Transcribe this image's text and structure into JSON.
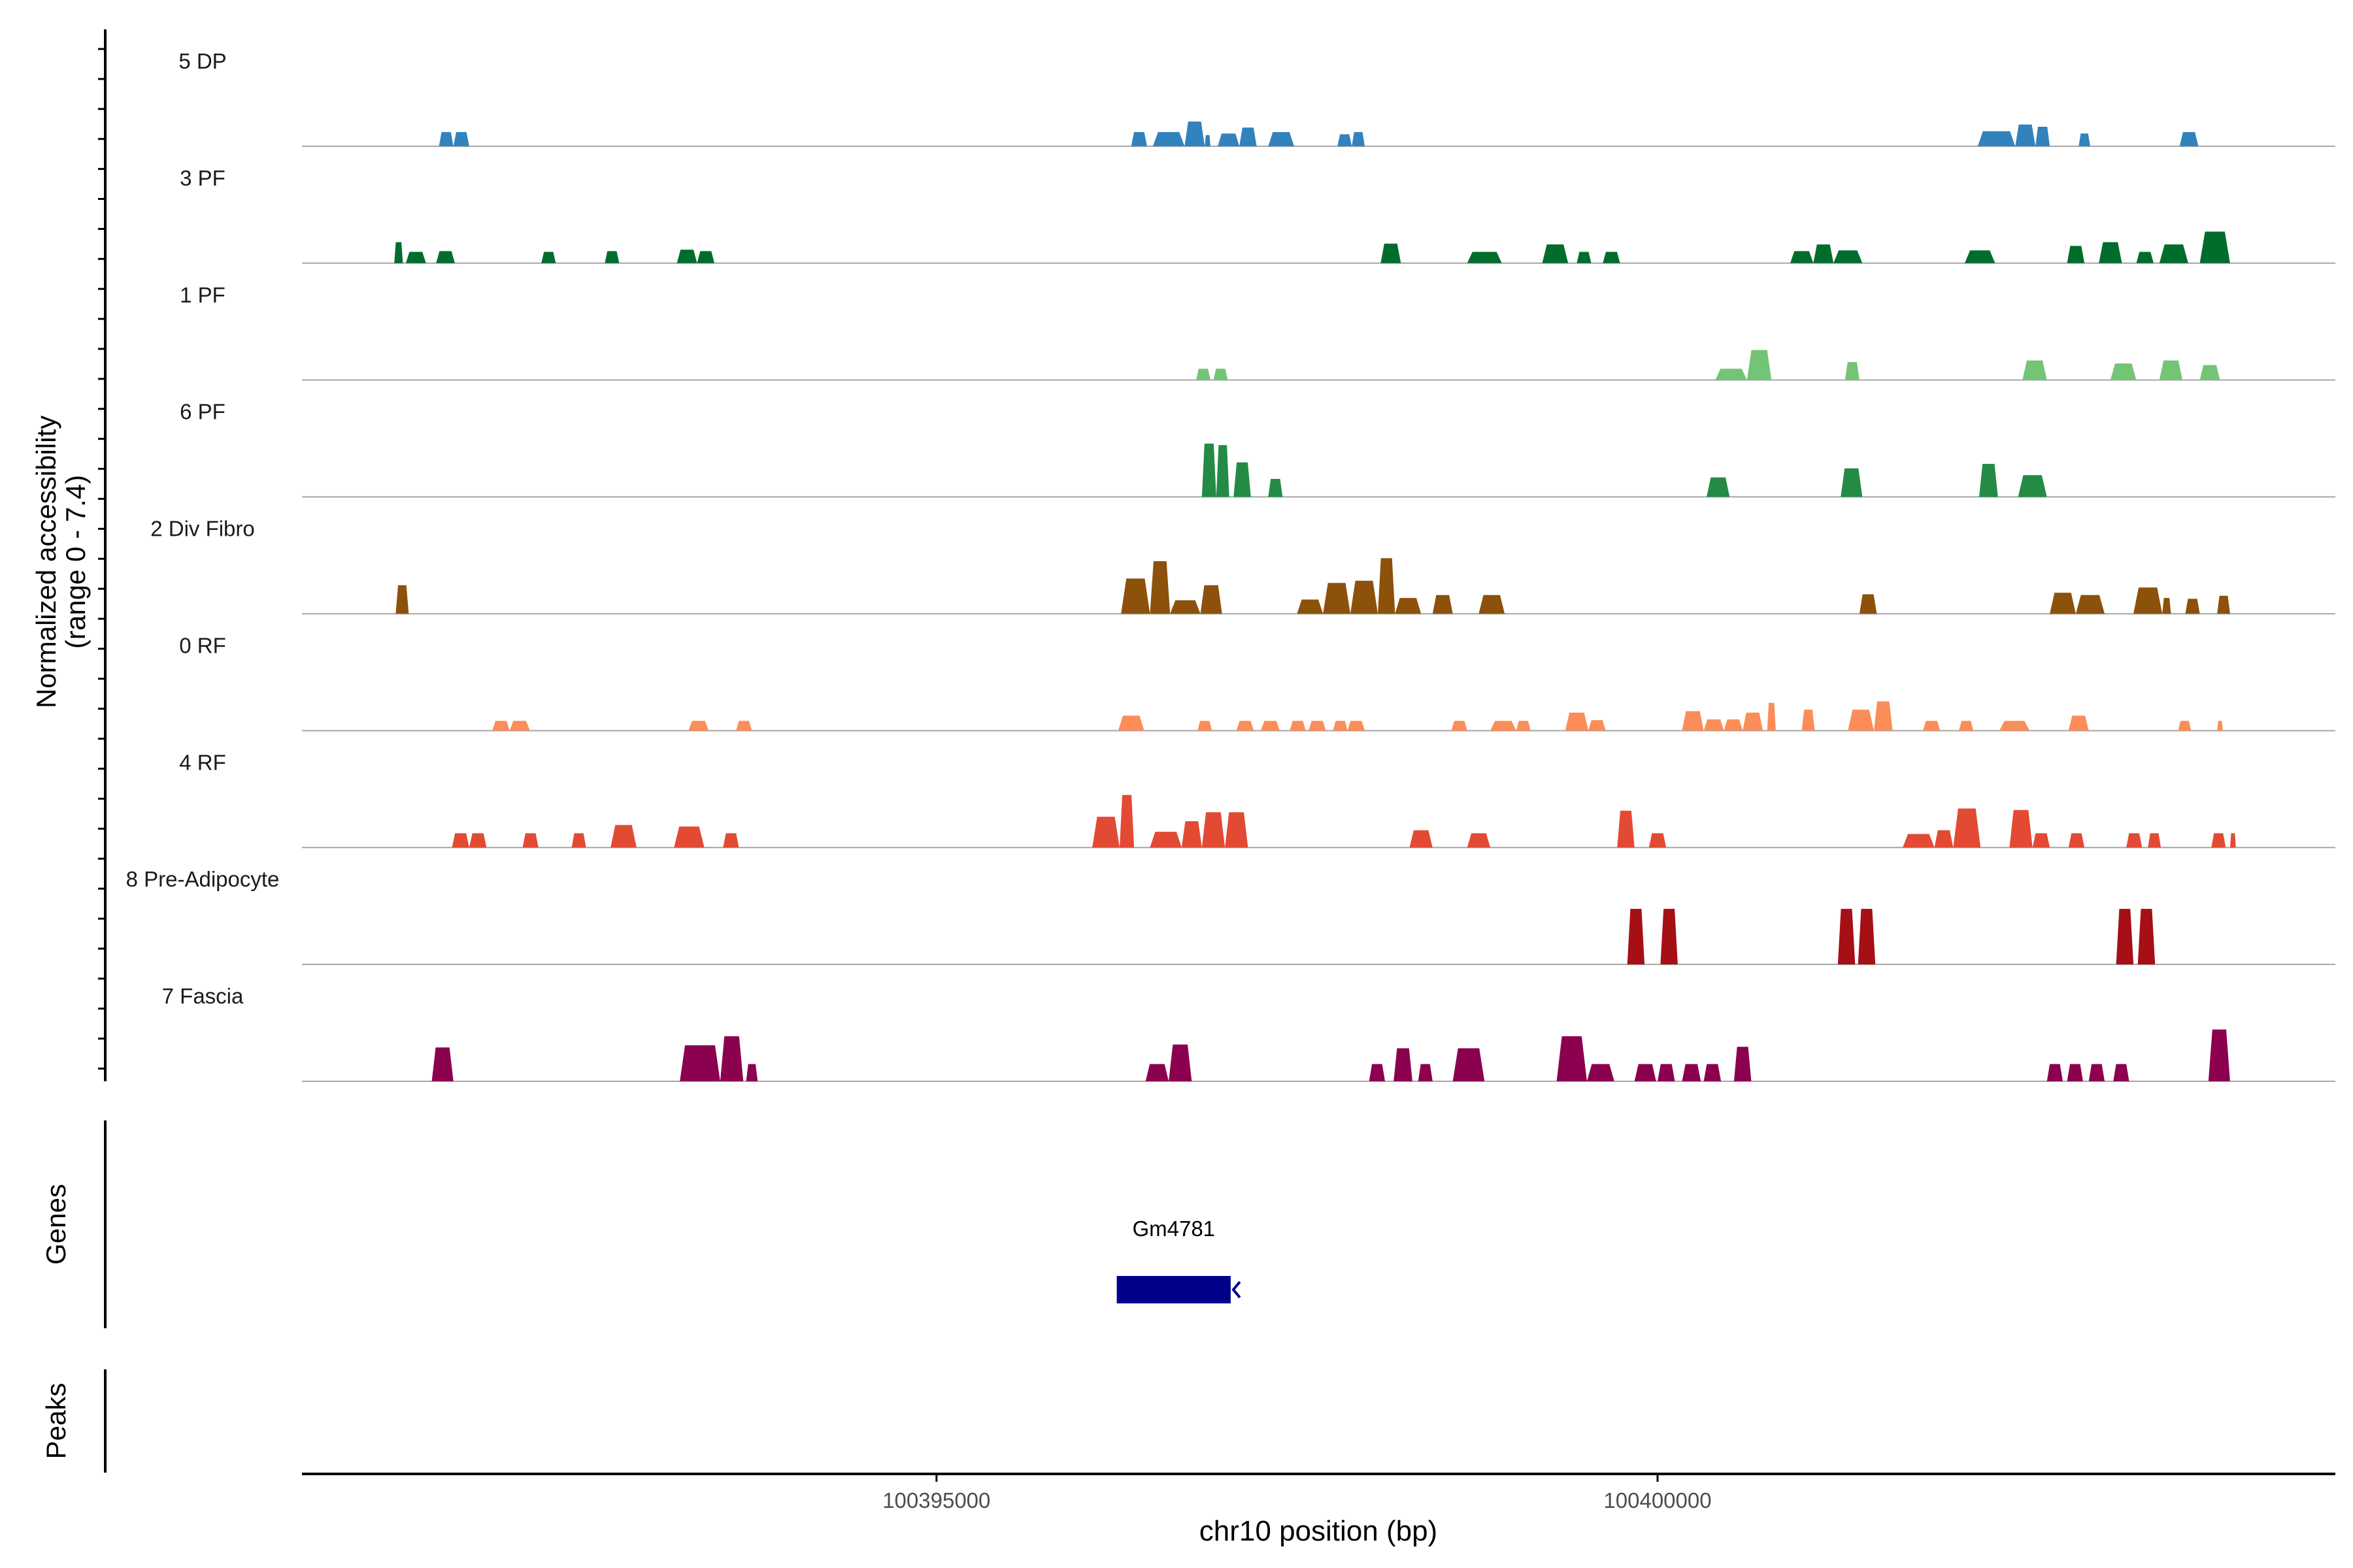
{
  "chart_data": {
    "type": "area",
    "title": "",
    "chromosome": "chr10",
    "xlabel": "chr10 position (bp)",
    "xlim": [
      100390600,
      100404700
    ],
    "x_ticks": [
      100395000,
      100400000
    ],
    "x_tick_labels": [
      "100395000",
      "100400000"
    ],
    "ylabel_line1": "Normalized accessibility",
    "ylabel_line2": "(range 0 - 7.4)",
    "ylim": [
      0,
      7.4
    ],
    "genes_panel_label": "Genes",
    "peaks_panel_label": "Peaks",
    "genes": [
      {
        "name": "Gm4781",
        "start": 100396250,
        "end": 100397040,
        "strand": "-",
        "color": "#00008b"
      }
    ],
    "series": [
      {
        "name": "5 DP",
        "color": "#3182bd",
        "peaks": [
          [
            100391550,
            100391650,
            1.9
          ],
          [
            100391650,
            100391760,
            1.9
          ],
          [
            100396350,
            100396460,
            1.9
          ],
          [
            100396500,
            100396720,
            1.9
          ],
          [
            100396720,
            100396860,
            3.3
          ],
          [
            100396860,
            100396900,
            1.5
          ],
          [
            100396950,
            100397100,
            1.7
          ],
          [
            100397100,
            100397220,
            2.5
          ],
          [
            100397300,
            100397480,
            1.9
          ],
          [
            100397780,
            100397880,
            1.6
          ],
          [
            100397880,
            100397970,
            1.9
          ],
          [
            100402220,
            100402480,
            2.0
          ],
          [
            100402480,
            100402620,
            2.9
          ],
          [
            100402620,
            100402720,
            2.6
          ],
          [
            100402920,
            100403000,
            1.7
          ],
          [
            100403620,
            100403750,
            1.9
          ]
        ]
      },
      {
        "name": "3 PF",
        "color": "#006d2c",
        "peaks": [
          [
            100391240,
            100391300,
            2.8
          ],
          [
            100391320,
            100391460,
            1.5
          ],
          [
            100391530,
            100391660,
            1.6
          ],
          [
            100392260,
            100392360,
            1.5
          ],
          [
            100392700,
            100392800,
            1.6
          ],
          [
            100393200,
            100393340,
            1.8
          ],
          [
            100393340,
            100393460,
            1.6
          ],
          [
            100398080,
            100398220,
            2.6
          ],
          [
            100398680,
            100398920,
            1.5
          ],
          [
            100399200,
            100399380,
            2.5
          ],
          [
            100399440,
            100399540,
            1.5
          ],
          [
            100399620,
            100399740,
            1.5
          ],
          [
            100400920,
            100401080,
            1.6
          ],
          [
            100401080,
            100401220,
            2.5
          ],
          [
            100401220,
            100401420,
            1.7
          ],
          [
            100402130,
            100402340,
            1.7
          ],
          [
            100402840,
            100402960,
            2.3
          ],
          [
            100403060,
            100403220,
            2.8
          ],
          [
            100403320,
            100403440,
            1.5
          ],
          [
            100403480,
            100403680,
            2.5
          ],
          [
            100403760,
            100403970,
            4.2
          ]
        ]
      },
      {
        "name": "1 PF",
        "color": "#74c476",
        "peaks": [
          [
            100396800,
            100396900,
            1.5
          ],
          [
            100396920,
            100397020,
            1.5
          ],
          [
            100400400,
            100400620,
            1.5
          ],
          [
            100400620,
            100400790,
            4.0
          ],
          [
            100401300,
            100401400,
            2.4
          ],
          [
            100402530,
            100402700,
            2.6
          ],
          [
            100403140,
            100403320,
            2.2
          ],
          [
            100403480,
            100403640,
            2.6
          ],
          [
            100403760,
            100403900,
            2.0
          ]
        ]
      },
      {
        "name": "6 PF",
        "color": "#238b45",
        "peaks": [
          [
            100396840,
            100396940,
            7.1
          ],
          [
            100396940,
            100397030,
            6.9
          ],
          [
            100397060,
            100397180,
            4.6
          ],
          [
            100397300,
            100397400,
            2.4
          ],
          [
            100400340,
            100400500,
            2.6
          ],
          [
            100401270,
            100401420,
            3.8
          ],
          [
            100402230,
            100402360,
            4.4
          ],
          [
            100402500,
            100402700,
            2.9
          ]
        ]
      },
      {
        "name": "2 Div Fibro",
        "color": "#8c510a",
        "peaks": [
          [
            100391250,
            100391340,
            3.8
          ],
          [
            100396280,
            100396480,
            4.7
          ],
          [
            100396480,
            100396620,
            7.0
          ],
          [
            100396620,
            100396830,
            1.8
          ],
          [
            100396830,
            100396980,
            3.8
          ],
          [
            100397500,
            100397680,
            1.9
          ],
          [
            100397680,
            100397870,
            4.1
          ],
          [
            100397870,
            100398060,
            4.4
          ],
          [
            100398060,
            100398180,
            7.4
          ],
          [
            100398180,
            100398360,
            2.1
          ],
          [
            100398440,
            100398580,
            2.5
          ],
          [
            100398760,
            100398940,
            2.5
          ],
          [
            100401400,
            100401520,
            2.6
          ],
          [
            100402720,
            100402900,
            2.8
          ],
          [
            100402900,
            100403100,
            2.5
          ],
          [
            100403300,
            100403500,
            3.5
          ],
          [
            100403500,
            100403560,
            2.1
          ],
          [
            100403660,
            100403760,
            2.0
          ],
          [
            100403880,
            100403970,
            2.4
          ]
        ]
      },
      {
        "name": "0 RF",
        "color": "#fc8d59",
        "peaks": [
          [
            100391920,
            100392040,
            1.3
          ],
          [
            100392040,
            100392180,
            1.3
          ],
          [
            100393280,
            100393420,
            1.3
          ],
          [
            100393610,
            100393720,
            1.3
          ],
          [
            100396260,
            100396440,
            2.0
          ],
          [
            100396810,
            100396910,
            1.3
          ],
          [
            100397080,
            100397200,
            1.3
          ],
          [
            100397250,
            100397380,
            1.3
          ],
          [
            100397450,
            100397560,
            1.3
          ],
          [
            100397580,
            100397700,
            1.3
          ],
          [
            100397750,
            100397850,
            1.3
          ],
          [
            100397850,
            100397970,
            1.3
          ],
          [
            100398570,
            100398680,
            1.3
          ],
          [
            100398840,
            100399020,
            1.3
          ],
          [
            100399020,
            100399120,
            1.3
          ],
          [
            100399360,
            100399520,
            2.4
          ],
          [
            100399520,
            100399640,
            1.4
          ],
          [
            100400170,
            100400320,
            2.6
          ],
          [
            100400320,
            100400460,
            1.5
          ],
          [
            100400460,
            100400590,
            1.5
          ],
          [
            100400590,
            100400730,
            2.4
          ],
          [
            100400760,
            100400820,
            3.7
          ],
          [
            100401000,
            100401090,
            2.8
          ],
          [
            100401320,
            100401500,
            2.8
          ],
          [
            100401500,
            100401630,
            3.9
          ],
          [
            100401840,
            100401960,
            1.3
          ],
          [
            100402090,
            100402190,
            1.3
          ],
          [
            100402370,
            100402580,
            1.3
          ],
          [
            100402850,
            100402990,
            2.0
          ],
          [
            100403610,
            100403700,
            1.3
          ],
          [
            100403880,
            100403920,
            1.3
          ]
        ]
      },
      {
        "name": "4 RF",
        "color": "#e34a33",
        "peaks": [
          [
            100391640,
            100391760,
            1.9
          ],
          [
            100391760,
            100391880,
            1.9
          ],
          [
            100392130,
            100392240,
            1.9
          ],
          [
            100392470,
            100392570,
            1.9
          ],
          [
            100392740,
            100392920,
            3.0
          ],
          [
            100393180,
            100393390,
            2.8
          ],
          [
            100393520,
            100393630,
            1.9
          ],
          [
            100396080,
            100396270,
            4.1
          ],
          [
            100396270,
            100396370,
            7.0
          ],
          [
            100396480,
            100396700,
            2.1
          ],
          [
            100396700,
            100396840,
            3.5
          ],
          [
            100396840,
            100397000,
            4.7
          ],
          [
            100397000,
            100397160,
            4.7
          ],
          [
            100398280,
            100398440,
            2.3
          ],
          [
            100398680,
            100398840,
            1.9
          ],
          [
            100399720,
            100399840,
            4.9
          ],
          [
            100399940,
            100400060,
            1.9
          ],
          [
            100401700,
            100401920,
            1.8
          ],
          [
            100401920,
            100402050,
            2.3
          ],
          [
            100402050,
            100402240,
            5.2
          ],
          [
            100402440,
            100402600,
            5.0
          ],
          [
            100402600,
            100402720,
            1.9
          ],
          [
            100402850,
            100402960,
            1.9
          ],
          [
            100403250,
            100403360,
            1.9
          ],
          [
            100403400,
            100403490,
            1.9
          ],
          [
            100403840,
            100403940,
            1.9
          ],
          [
            100403970,
            100404010,
            1.9
          ]
        ]
      },
      {
        "name": "8 Pre-Adipocyte",
        "color": "#a50f15",
        "peaks": [
          [
            100399790,
            100399910,
            7.4
          ],
          [
            100400020,
            100400140,
            7.4
          ],
          [
            100401250,
            100401370,
            7.4
          ],
          [
            100401390,
            100401510,
            7.4
          ],
          [
            100403180,
            100403300,
            7.4
          ],
          [
            100403330,
            100403450,
            7.4
          ]
        ]
      },
      {
        "name": "7 Fascia",
        "color": "#8b004f",
        "peaks": [
          [
            100391500,
            100391650,
            4.5
          ],
          [
            100393220,
            100393500,
            4.8
          ],
          [
            100393500,
            100393660,
            6.0
          ],
          [
            100393680,
            100393760,
            2.3
          ],
          [
            100396450,
            100396610,
            2.3
          ],
          [
            100396610,
            100396770,
            4.9
          ],
          [
            100398000,
            100398110,
            2.3
          ],
          [
            100398170,
            100398300,
            4.4
          ],
          [
            100398340,
            100398440,
            2.3
          ],
          [
            100398580,
            100398800,
            4.4
          ],
          [
            100399300,
            100399510,
            6.0
          ],
          [
            100399510,
            100399700,
            2.3
          ],
          [
            100399840,
            100399990,
            2.3
          ],
          [
            100400000,
            100400120,
            2.3
          ],
          [
            100400170,
            100400300,
            2.3
          ],
          [
            100400320,
            100400440,
            2.3
          ],
          [
            100400530,
            100400650,
            4.6
          ],
          [
            100402700,
            100402810,
            2.3
          ],
          [
            100402840,
            100402950,
            2.3
          ],
          [
            100402990,
            100403100,
            2.3
          ],
          [
            100403160,
            100403270,
            2.3
          ],
          [
            100403820,
            100403970,
            6.9
          ]
        ]
      }
    ]
  }
}
